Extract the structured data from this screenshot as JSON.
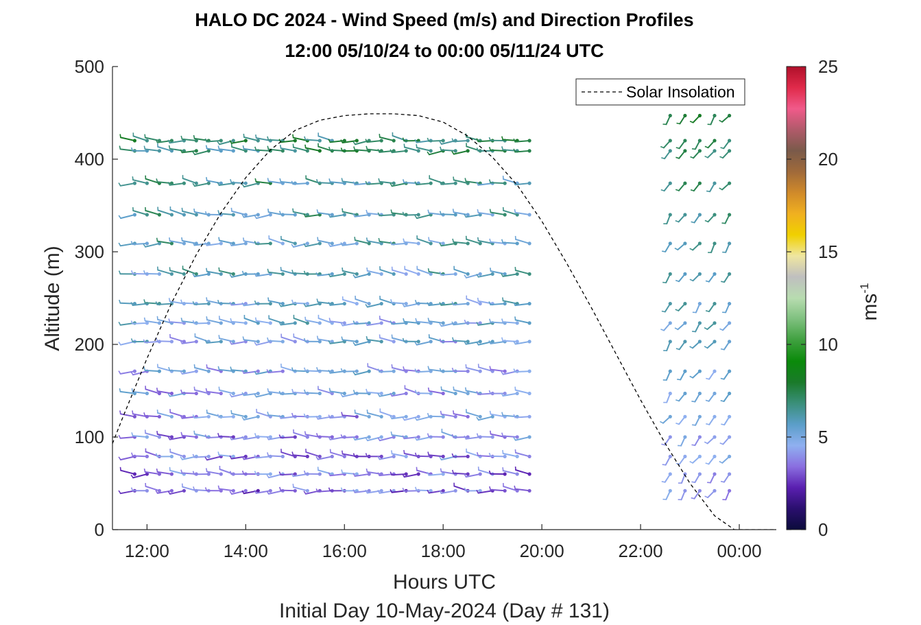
{
  "chart_data": {
    "type": "wind-barb-profile",
    "title_line1": "HALO DC 2024 - Wind Speed (m/s) and Direction Profiles",
    "title_line2": "12:00 05/10/24 to 00:00 05/11/24  UTC",
    "xlabel": "Hours UTC",
    "xlabel2": "Initial Day 10-May-2024 (Day # 131)",
    "ylabel": "Altitude (m)",
    "xlim": [
      11.3,
      24.75
    ],
    "ylim": [
      0,
      500
    ],
    "x_ticks": [
      12,
      14,
      16,
      18,
      20,
      22,
      24
    ],
    "x_tick_labels": [
      "12:00",
      "14:00",
      "16:00",
      "18:00",
      "20:00",
      "22:00",
      "00:00"
    ],
    "y_ticks": [
      0,
      100,
      200,
      300,
      400,
      500
    ],
    "y_tick_labels": [
      "0",
      "100",
      "200",
      "300",
      "400",
      "500"
    ],
    "colorbar": {
      "label": "ms",
      "label_exponent": "-1",
      "min": 0,
      "max": 25,
      "ticks": [
        0,
        5,
        10,
        15,
        20,
        25
      ],
      "tick_labels": [
        "0",
        "5",
        "10",
        "15",
        "20",
        "25"
      ],
      "colors": [
        "#0b0b3b",
        "#2a0f6e",
        "#5a1fb0",
        "#8a6fe0",
        "#8fb0f0",
        "#5b9ec9",
        "#3a8f7a",
        "#1a7a2a",
        "#0a8a0a",
        "#3fa03f",
        "#7ec07e",
        "#b8dcb0",
        "#bfbfbf",
        "#efe6a0",
        "#f0d000",
        "#f0b020",
        "#d08a2a",
        "#a06a3a",
        "#7a5a4a",
        "#b05a6a",
        "#f05a8a",
        "#e02a4a",
        "#b0102a"
      ]
    },
    "legend": {
      "entries": [
        "Solar Insolation"
      ],
      "placement": "top-right"
    },
    "solar_insolation": {
      "style": "dashed",
      "color": "#000000",
      "peak_altitude": 448,
      "peak_time": 17.1,
      "x": [
        11.3,
        11.5,
        12.0,
        12.5,
        13.0,
        13.5,
        14.0,
        14.5,
        15.0,
        15.5,
        16.0,
        16.5,
        17.0,
        17.5,
        18.0,
        18.5,
        19.0,
        19.5,
        20.0,
        20.5,
        21.0,
        21.5,
        22.0,
        22.5,
        23.0,
        23.5,
        23.9,
        24.75
      ],
      "y": [
        93,
        120,
        185,
        245,
        297,
        342,
        380,
        410,
        431,
        442,
        447,
        449,
        449,
        447,
        440,
        425,
        402,
        372,
        333,
        288,
        240,
        190,
        140,
        93,
        50,
        15,
        0,
        0
      ]
    },
    "series": [
      {
        "times": [
          11.75,
          12.0,
          12.25,
          12.5,
          12.75,
          13.0,
          13.25,
          13.5,
          13.75,
          14.0,
          14.25,
          14.5,
          14.75,
          15.0,
          15.25,
          15.5,
          15.75,
          16.0,
          16.25,
          16.5,
          16.75,
          17.0,
          17.25,
          17.5,
          17.75,
          18.0,
          18.25,
          18.5,
          18.75,
          19.0,
          19.25,
          19.5,
          19.75
        ],
        "altitudes": [
          42,
          60,
          79,
          100,
          122,
          147,
          171,
          203,
          223,
          244,
          276,
          309,
          340,
          374,
          409,
          420
        ],
        "speed_range": [
          2,
          9
        ],
        "direction_from_deg": [
          255,
          290
        ]
      },
      {
        "times": [
          22.6,
          22.9,
          23.2,
          23.5,
          23.8
        ],
        "altitudes": [
          42,
          60,
          79,
          100,
          122,
          147,
          171,
          203,
          223,
          244,
          276,
          309,
          340,
          374,
          409,
          420,
          447,
          480
        ],
        "speed_range": [
          3,
          9
        ],
        "direction_from_deg": [
          200,
          230
        ]
      }
    ]
  }
}
